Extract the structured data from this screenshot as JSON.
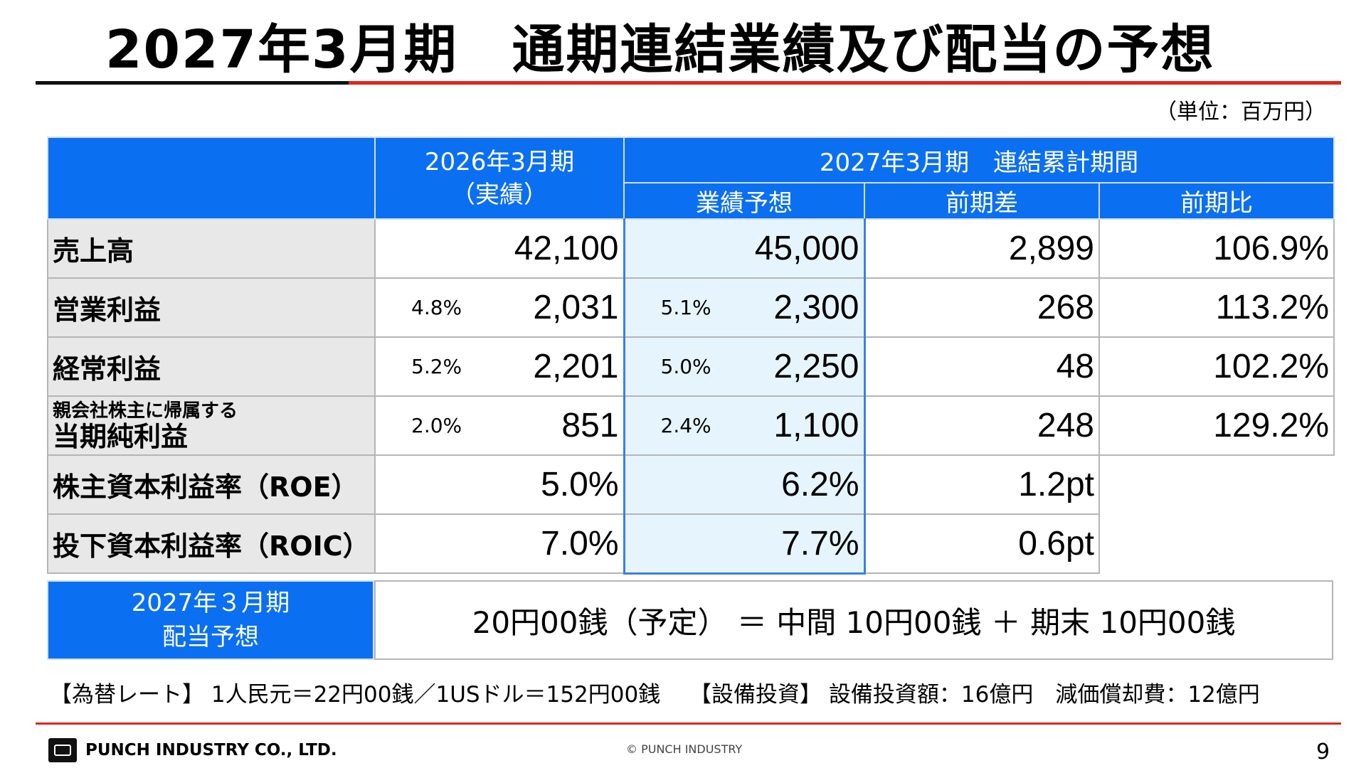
{
  "title": "2027年3月期　通期連結業績及び配当の予想",
  "unit": "（単位：百万円）",
  "table": {
    "header": {
      "prev_period": "2026年3月期",
      "prev_sub": "（実績）",
      "cur_period": "2027年3月期　連結累計期間",
      "col_forecast": "業績予想",
      "col_diff": "前期差",
      "col_ratio": "前期比"
    },
    "rows": [
      {
        "label": "売上高",
        "prev_pct": "",
        "prev": "42,100",
        "fc_pct": "",
        "fc": "45,000",
        "diff": "2,899",
        "ratio": "106.9%"
      },
      {
        "label": "営業利益",
        "prev_pct": "4.8%",
        "prev": "2,031",
        "fc_pct": "5.1%",
        "fc": "2,300",
        "diff": "268",
        "ratio": "113.2%"
      },
      {
        "label": "経常利益",
        "prev_pct": "5.2%",
        "prev": "2,201",
        "fc_pct": "5.0%",
        "fc": "2,250",
        "diff": "48",
        "ratio": "102.2%"
      },
      {
        "label_small": "親会社株主に帰属する",
        "label": "当期純利益",
        "prev_pct": "2.0%",
        "prev": "851",
        "fc_pct": "2.4%",
        "fc": "1,100",
        "diff": "248",
        "ratio": "129.2%"
      },
      {
        "label": "株主資本利益率（ROE）",
        "prev": "5.0%",
        "fc": "6.2%",
        "diff": "1.2pt"
      },
      {
        "label": "投下資本利益率（ROIC）",
        "prev": "7.0%",
        "fc": "7.7%",
        "diff": "0.6pt"
      }
    ]
  },
  "dividend": {
    "label_line1": "2027年３月期",
    "label_line2": "配当予想",
    "value": "20円00銭（予定） ＝ 中間 10円00銭 ＋ 期末 10円00銭"
  },
  "notes": "【為替レート】 1人民元＝22円00銭／1USドル＝152円00銭　 【設備投資】 設備投資額：16億円　減価償却費：12億円",
  "footer": {
    "company": "PUNCH INDUSTRY CO., LTD.",
    "copyright": "© PUNCH INDUSTRY",
    "page": "9"
  }
}
